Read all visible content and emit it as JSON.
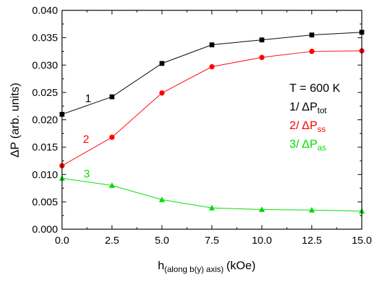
{
  "chart_data": {
    "type": "line",
    "title": "",
    "xlabel": {
      "main": "h",
      "sub": "(along b(y) axis)",
      "unit": "(kOe)"
    },
    "ylabel": "ΔP (arb. units)",
    "xlim": [
      0,
      15
    ],
    "ylim": [
      0,
      0.04
    ],
    "x_ticks": [
      "0.0",
      "2.5",
      "5.0",
      "7.5",
      "10.0",
      "12.5",
      "15.0"
    ],
    "y_ticks": [
      "0.000",
      "0.005",
      "0.010",
      "0.015",
      "0.020",
      "0.025",
      "0.030",
      "0.035",
      "0.040"
    ],
    "x_tick_values": [
      0,
      2.5,
      5,
      7.5,
      10,
      12.5,
      15
    ],
    "y_tick_values": [
      0,
      0.005,
      0.01,
      0.015,
      0.02,
      0.025,
      0.03,
      0.035,
      0.04
    ],
    "x": [
      0,
      2.5,
      5,
      7.5,
      10,
      12.5,
      15
    ],
    "series": [
      {
        "number": "1",
        "marker": "square",
        "color": "#000000",
        "values": [
          0.021,
          0.0242,
          0.0303,
          0.0337,
          0.0346,
          0.0355,
          0.036
        ]
      },
      {
        "number": "2",
        "marker": "circle",
        "color": "#ff0000",
        "values": [
          0.0116,
          0.0168,
          0.0249,
          0.0297,
          0.0314,
          0.0325,
          0.0326
        ]
      },
      {
        "number": "3",
        "marker": "triangle",
        "color": "#00dd00",
        "values": [
          0.0093,
          0.008,
          0.0054,
          0.0039,
          0.0036,
          0.0035,
          0.0033
        ]
      }
    ],
    "annotation_temp": "T = 600 K",
    "legend": [
      {
        "prefix": "1/ ΔP",
        "sub": "tot",
        "color": "#000000"
      },
      {
        "prefix": "2/ ΔP",
        "sub": "ss",
        "color": "#ff0000"
      },
      {
        "prefix": "3/ ΔP",
        "sub": "as",
        "color": "#00dd00"
      }
    ]
  }
}
